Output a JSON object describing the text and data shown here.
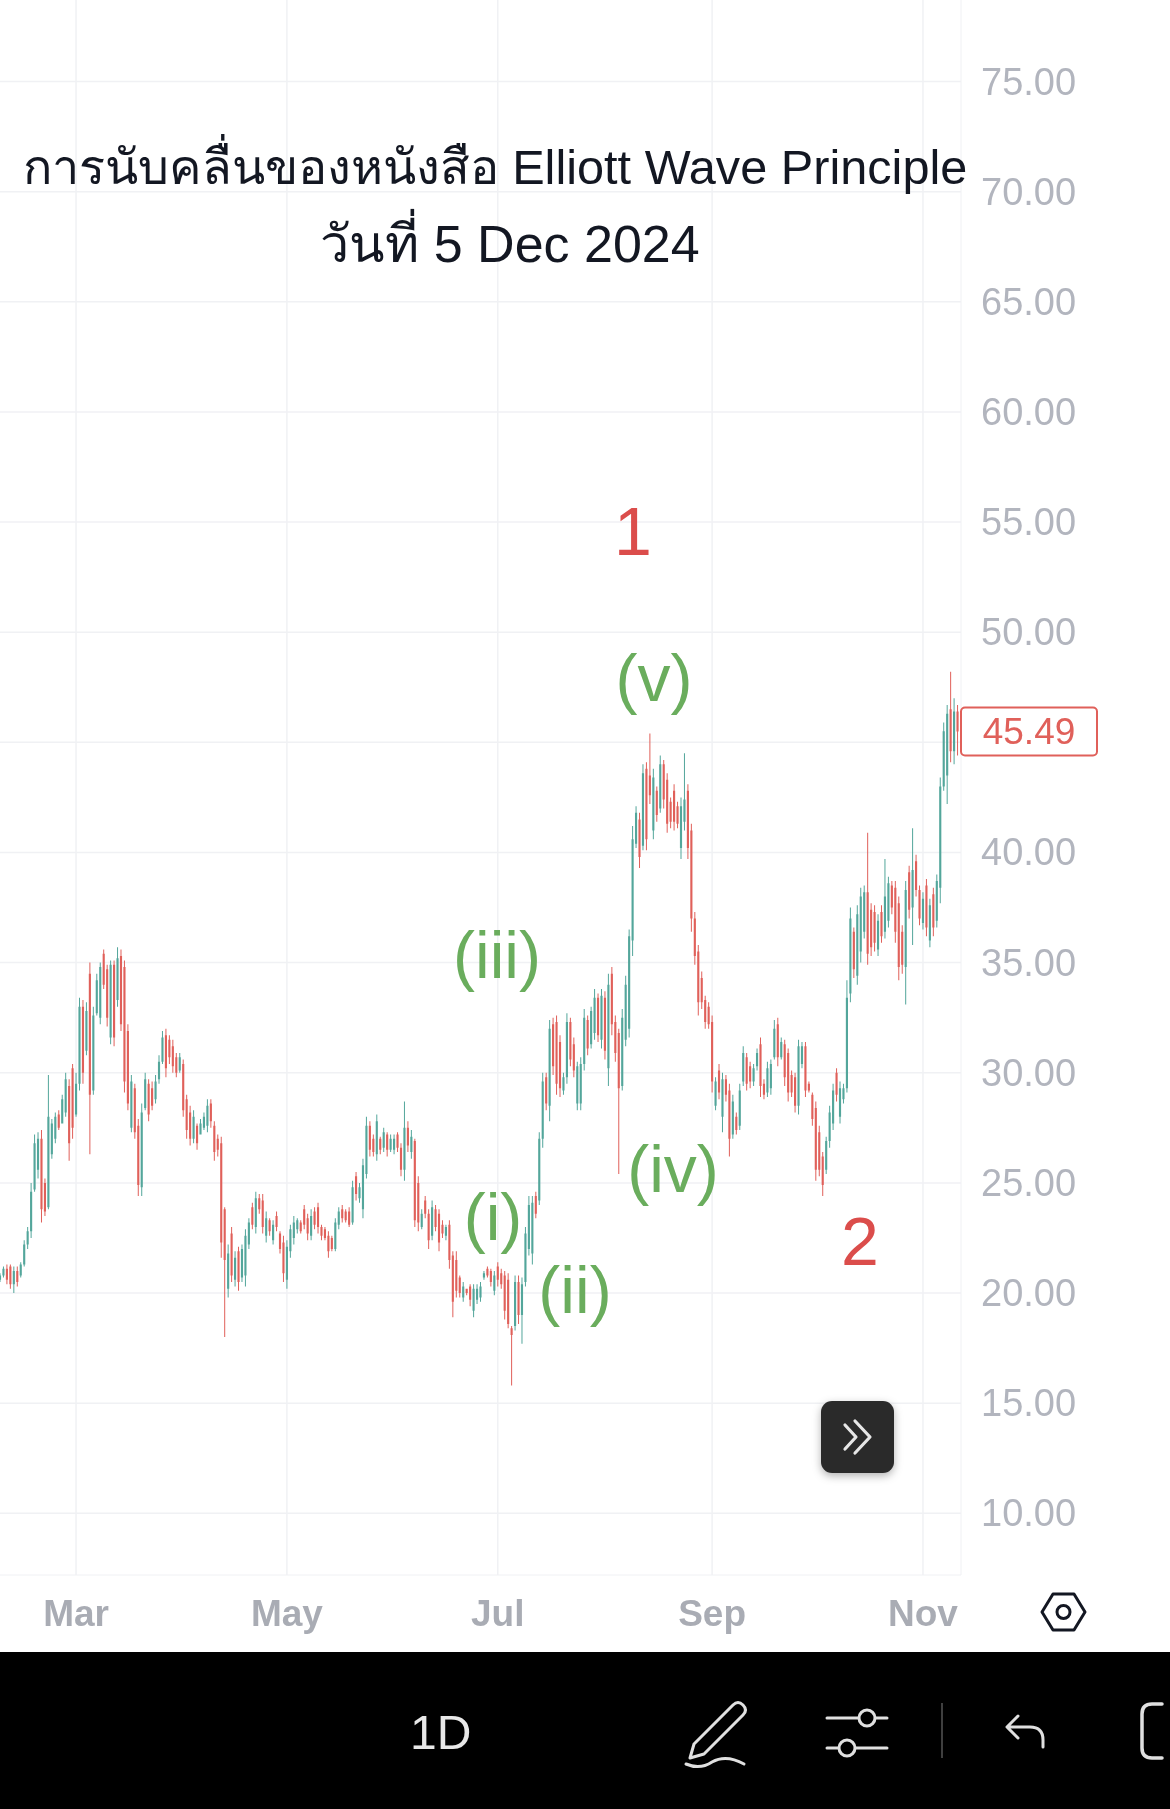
{
  "chart_data": {
    "type": "candlestick",
    "title": "การนับคลื่นของหนังสือ Elliott Wave Principle",
    "subtitle": "วันที่ 5 Dec 2024",
    "x": [
      "--02-08",
      "--02-09",
      "--02-10",
      "--02-11",
      "--02-12",
      "--02-13",
      "--02-14",
      "--02-15",
      "--02-16",
      "--02-17",
      "--02-18",
      "--02-19",
      "--02-20",
      "--02-21",
      "--02-22",
      "--02-23",
      "--02-24",
      "--02-25",
      "--02-26",
      "--02-27",
      "--02-28",
      "--02-29",
      "--03-01",
      "--03-02",
      "--03-03",
      "--03-04",
      "--03-05",
      "--03-06",
      "--03-07",
      "--03-08",
      "--03-09",
      "--03-10",
      "--03-11",
      "--03-12",
      "--03-13",
      "--03-14",
      "--03-15",
      "--03-16",
      "--03-17",
      "--03-18",
      "--03-19",
      "--03-20",
      "--03-21",
      "--03-22",
      "--03-23",
      "--03-24",
      "--03-25",
      "--03-26",
      "--03-27",
      "--03-28",
      "--03-29",
      "--03-30",
      "--03-31",
      "--04-01",
      "--04-02",
      "--04-03",
      "--04-04",
      "--04-05",
      "--04-06",
      "--04-07",
      "--04-08",
      "--04-09",
      "--04-10",
      "--04-11",
      "--04-12",
      "--04-13",
      "--04-14",
      "--04-15",
      "--04-16",
      "--04-17",
      "--04-18",
      "--04-19",
      "--04-20",
      "--04-21",
      "--04-22",
      "--04-23",
      "--04-24",
      "--04-25",
      "--04-26",
      "--04-27",
      "--04-28",
      "--04-29",
      "--04-30",
      "--05-01",
      "--05-02",
      "--05-03",
      "--05-04",
      "--05-05",
      "--05-06",
      "--05-07",
      "--05-08",
      "--05-09",
      "--05-10",
      "--05-11",
      "--05-12",
      "--05-13",
      "--05-14",
      "--05-15",
      "--05-16",
      "--05-17",
      "--05-18",
      "--05-19",
      "--05-20",
      "--05-21",
      "--05-22",
      "--05-23",
      "--05-24",
      "--05-25",
      "--05-26",
      "--05-27",
      "--05-28",
      "--05-29",
      "--05-30",
      "--05-31",
      "--06-01",
      "--06-02",
      "--06-03",
      "--06-04",
      "--06-05",
      "--06-06",
      "--06-07",
      "--06-08",
      "--06-09",
      "--06-10",
      "--06-11",
      "--06-12",
      "--06-13",
      "--06-14",
      "--06-15",
      "--06-16",
      "--06-17",
      "--06-18",
      "--06-19",
      "--06-20",
      "--06-21",
      "--06-22",
      "--06-23",
      "--06-24",
      "--06-25",
      "--06-26",
      "--06-27",
      "--06-28",
      "--06-29",
      "--06-30",
      "--07-01",
      "--07-02",
      "--07-03",
      "--07-04",
      "--07-05",
      "--07-06",
      "--07-07",
      "--07-08",
      "--07-09",
      "--07-10",
      "--07-11",
      "--07-12",
      "--07-13",
      "--07-14",
      "--07-15",
      "--07-16",
      "--07-17",
      "--07-18",
      "--07-19",
      "--07-20",
      "--07-21",
      "--07-22",
      "--07-23",
      "--07-24",
      "--07-25",
      "--07-26",
      "--07-27",
      "--07-28",
      "--07-29",
      "--07-30",
      "--07-31",
      "--08-01",
      "--08-02",
      "--08-03",
      "--08-04",
      "--08-05",
      "--08-06",
      "--08-07",
      "--08-08",
      "--08-09",
      "--08-10",
      "--08-11",
      "--08-12",
      "--08-13",
      "--08-14",
      "--08-15",
      "--08-16",
      "--08-17",
      "--08-18",
      "--08-19",
      "--08-20",
      "--08-21",
      "--08-22",
      "--08-23",
      "--08-24",
      "--08-25",
      "--08-26",
      "--08-27",
      "--08-28",
      "--08-29",
      "--08-30",
      "--08-31",
      "--09-01",
      "--09-02",
      "--09-03",
      "--09-04",
      "--09-05",
      "--09-06",
      "--09-07",
      "--09-08",
      "--09-09",
      "--09-10",
      "--09-11",
      "--09-12",
      "--09-13",
      "--09-14",
      "--09-15",
      "--09-16",
      "--09-17",
      "--09-18",
      "--09-19",
      "--09-20",
      "--09-21",
      "--09-22",
      "--09-23",
      "--09-24",
      "--09-25",
      "--09-26",
      "--09-27",
      "--09-28",
      "--09-29",
      "--09-30",
      "--10-01",
      "--10-02",
      "--10-03",
      "--10-04",
      "--10-05",
      "--10-06",
      "--10-07",
      "--10-08",
      "--10-09",
      "--10-10",
      "--10-11",
      "--10-12",
      "--10-13",
      "--10-14",
      "--10-15",
      "--10-16",
      "--10-17",
      "--10-18",
      "--10-19",
      "--10-20",
      "--10-21",
      "--10-22",
      "--10-23",
      "--10-24",
      "--10-25",
      "--10-26",
      "--10-27",
      "--10-28",
      "--10-29",
      "--10-30",
      "--10-31",
      "--11-01",
      "--11-02",
      "--11-03",
      "--11-04",
      "--11-05",
      "--11-06",
      "--11-07",
      "--11-08",
      "--11-09",
      "--11-10",
      "--11-11"
    ],
    "ohlc": [
      [
        20.6,
        20.9,
        20.5,
        20.8
      ],
      [
        20.8,
        21.2,
        20.7,
        21.1
      ],
      [
        21.1,
        21.3,
        20.4,
        20.6
      ],
      [
        21.2,
        21.3,
        20.2,
        20.4
      ],
      [
        20.4,
        21.2,
        20.0,
        21.0
      ],
      [
        21.0,
        21.2,
        20.3,
        20.5
      ],
      [
        20.8,
        21.4,
        20.7,
        21.3
      ],
      [
        21.3,
        22.4,
        21.2,
        22.2
      ],
      [
        22.2,
        23.0,
        22.0,
        22.8
      ],
      [
        22.8,
        25.0,
        22.5,
        24.6
      ],
      [
        24.7,
        27.2,
        24.6,
        26.8
      ],
      [
        25.6,
        27.3,
        25.2,
        27.0
      ],
      [
        27.0,
        27.4,
        23.2,
        23.8
      ],
      [
        25.0,
        25.2,
        23.5,
        23.7
      ],
      [
        23.9,
        29.9,
        23.8,
        28.0
      ],
      [
        26.3,
        27.9,
        26.1,
        27.7
      ],
      [
        27.0,
        28.2,
        26.8,
        28.0
      ],
      [
        28.1,
        28.3,
        27.4,
        27.5
      ],
      [
        27.7,
        29.0,
        27.7,
        28.8
      ],
      [
        28.2,
        30.0,
        28.0,
        29.7
      ],
      [
        29.4,
        29.7,
        26.0,
        26.8
      ],
      [
        30.2,
        30.4,
        27.0,
        27.5
      ],
      [
        28.1,
        30.0,
        28.0,
        29.5
      ],
      [
        29.5,
        33.4,
        29.2,
        33.0
      ],
      [
        33.0,
        33.3,
        29.5,
        30.0
      ],
      [
        31.0,
        33.2,
        30.8,
        32.8
      ],
      [
        34.5,
        35.0,
        26.3,
        29.0
      ],
      [
        29.2,
        33.0,
        29.0,
        32.6
      ],
      [
        32.7,
        34.5,
        32.6,
        34.2
      ],
      [
        32.5,
        35.0,
        32.2,
        34.8
      ],
      [
        35.4,
        35.6,
        33.8,
        34.0
      ],
      [
        34.7,
        34.9,
        32.1,
        32.5
      ],
      [
        31.6,
        35.1,
        31.3,
        34.9
      ],
      [
        34.9,
        35.1,
        31.2,
        31.6
      ],
      [
        33.3,
        35.7,
        33.0,
        35.2
      ],
      [
        35.3,
        35.6,
        31.9,
        32.2
      ],
      [
        34.8,
        35.1,
        29.1,
        29.6
      ],
      [
        31.9,
        32.2,
        28.3,
        28.6
      ],
      [
        27.5,
        29.9,
        27.3,
        29.6
      ],
      [
        29.3,
        29.5,
        27.0,
        27.3
      ],
      [
        27.6,
        27.9,
        24.4,
        24.9
      ],
      [
        24.8,
        28.6,
        24.4,
        28.2
      ],
      [
        28.4,
        30.0,
        28.3,
        29.7
      ],
      [
        29.5,
        29.7,
        27.8,
        28.1
      ],
      [
        29.3,
        29.6,
        28.3,
        28.5
      ],
      [
        28.8,
        29.9,
        28.6,
        29.6
      ],
      [
        29.7,
        30.8,
        29.5,
        30.5
      ],
      [
        30.5,
        31.9,
        30.4,
        31.6
      ],
      [
        31.7,
        32.0,
        29.8,
        30.2
      ],
      [
        31.5,
        31.7,
        30.4,
        30.7
      ],
      [
        31.2,
        31.5,
        30.0,
        30.3
      ],
      [
        30.7,
        30.9,
        29.8,
        30.0
      ],
      [
        30.1,
        30.9,
        30.0,
        30.7
      ],
      [
        30.4,
        30.6,
        28.0,
        28.3
      ],
      [
        28.8,
        29.0,
        27.0,
        27.4
      ],
      [
        28.2,
        28.5,
        26.7,
        27.0
      ],
      [
        27.0,
        28.3,
        26.8,
        28.0
      ],
      [
        27.6,
        27.7,
        26.5,
        26.8
      ],
      [
        27.2,
        27.9,
        27.2,
        27.7
      ],
      [
        27.5,
        28.2,
        27.4,
        28.0
      ],
      [
        27.6,
        28.8,
        27.3,
        28.5
      ],
      [
        28.6,
        28.8,
        27.5,
        27.8
      ],
      [
        27.6,
        27.8,
        26.0,
        26.4
      ],
      [
        27.0,
        27.2,
        26.2,
        26.5
      ],
      [
        26.8,
        27.1,
        21.6,
        22.3
      ],
      [
        23.8,
        23.9,
        18.0,
        21.5
      ],
      [
        20.2,
        22.2,
        19.8,
        21.8
      ],
      [
        22.7,
        23.0,
        20.5,
        20.8
      ],
      [
        20.6,
        21.9,
        20.3,
        21.6
      ],
      [
        21.9,
        22.1,
        20.1,
        20.5
      ],
      [
        20.7,
        22.2,
        20.5,
        22.0
      ],
      [
        20.8,
        22.9,
        20.3,
        22.6
      ],
      [
        22.2,
        23.4,
        22.0,
        23.2
      ],
      [
        23.9,
        24.1,
        22.9,
        23.1
      ],
      [
        23.0,
        24.6,
        22.7,
        24.3
      ],
      [
        24.3,
        24.5,
        23.6,
        23.8
      ],
      [
        24.2,
        24.5,
        22.7,
        23.0
      ],
      [
        22.6,
        23.7,
        22.3,
        23.4
      ],
      [
        23.3,
        23.4,
        22.6,
        22.8
      ],
      [
        22.4,
        23.3,
        22.2,
        23.1
      ],
      [
        23.5,
        23.7,
        22.8,
        23.0
      ],
      [
        22.7,
        22.8,
        21.8,
        22.0
      ],
      [
        22.3,
        22.6,
        20.5,
        20.9
      ],
      [
        20.6,
        22.4,
        20.2,
        22.1
      ],
      [
        21.9,
        23.1,
        21.6,
        22.9
      ],
      [
        22.5,
        23.5,
        22.2,
        23.2
      ],
      [
        22.9,
        23.4,
        22.7,
        23.3
      ],
      [
        23.2,
        23.3,
        22.7,
        22.8
      ],
      [
        23.8,
        24.0,
        22.9,
        23.1
      ],
      [
        23.4,
        23.6,
        22.4,
        22.7
      ],
      [
        22.6,
        23.8,
        22.4,
        23.5
      ],
      [
        23.7,
        23.9,
        22.9,
        23.1
      ],
      [
        23.9,
        24.1,
        22.7,
        23.0
      ],
      [
        23.0,
        23.1,
        22.4,
        22.6
      ],
      [
        22.9,
        23.0,
        22.4,
        22.5
      ],
      [
        22.6,
        22.8,
        21.6,
        21.9
      ],
      [
        22.5,
        22.6,
        21.9,
        22.0
      ],
      [
        22.0,
        23.4,
        21.9,
        23.2
      ],
      [
        23.1,
        23.9,
        22.9,
        23.7
      ],
      [
        23.8,
        24.0,
        23.2,
        23.4
      ],
      [
        23.7,
        23.8,
        23.2,
        23.3
      ],
      [
        23.7,
        23.9,
        23.0,
        23.1
      ],
      [
        23.2,
        25.1,
        23.1,
        24.8
      ],
      [
        25.3,
        25.5,
        24.2,
        24.5
      ],
      [
        24.3,
        25.0,
        24.1,
        24.8
      ],
      [
        23.8,
        26.1,
        23.4,
        25.8
      ],
      [
        25.4,
        28.0,
        25.2,
        27.6
      ],
      [
        27.6,
        27.8,
        26.2,
        26.5
      ],
      [
        27.0,
        27.2,
        26.2,
        26.4
      ],
      [
        26.3,
        28.1,
        26.0,
        27.8
      ],
      [
        27.0,
        27.1,
        26.3,
        26.5
      ],
      [
        26.6,
        27.5,
        26.4,
        27.3
      ],
      [
        27.2,
        27.3,
        26.2,
        26.5
      ],
      [
        26.5,
        27.2,
        26.4,
        27.0
      ],
      [
        26.5,
        27.2,
        26.3,
        27.0
      ],
      [
        27.2,
        27.3,
        26.4,
        26.6
      ],
      [
        26.6,
        26.8,
        25.3,
        25.6
      ],
      [
        25.6,
        28.7,
        25.1,
        27.5
      ],
      [
        27.5,
        27.8,
        26.4,
        26.7
      ],
      [
        26.4,
        27.4,
        26.1,
        27.1
      ],
      [
        26.9,
        27.0,
        23.0,
        23.3
      ],
      [
        25.0,
        25.3,
        22.8,
        23.2
      ],
      [
        23.0,
        23.8,
        22.9,
        23.6
      ],
      [
        24.2,
        24.4,
        23.4,
        23.6
      ],
      [
        23.6,
        23.8,
        22.0,
        22.4
      ],
      [
        22.6,
        24.2,
        22.4,
        23.9
      ],
      [
        23.8,
        24.0,
        22.8,
        23.0
      ],
      [
        23.6,
        23.8,
        21.9,
        22.3
      ],
      [
        23.1,
        23.3,
        22.5,
        22.7
      ],
      [
        22.6,
        23.1,
        22.4,
        23.0
      ],
      [
        23.1,
        23.3,
        21.1,
        21.5
      ],
      [
        21.7,
        21.9,
        18.9,
        19.6
      ],
      [
        21.5,
        21.9,
        19.8,
        20.1
      ],
      [
        20.7,
        20.8,
        19.8,
        20.0
      ],
      [
        19.8,
        20.5,
        19.6,
        20.3
      ],
      [
        20.2,
        20.2,
        19.9,
        20.0
      ],
      [
        20.3,
        20.4,
        19.4,
        19.7
      ],
      [
        19.2,
        20.4,
        18.9,
        20.2
      ],
      [
        19.7,
        20.4,
        19.5,
        20.2
      ],
      [
        19.8,
        20.5,
        19.6,
        20.3
      ],
      [
        20.7,
        21.0,
        20.6,
        20.9
      ],
      [
        21.1,
        21.2,
        20.7,
        20.8
      ],
      [
        21.0,
        21.1,
        20.3,
        20.5
      ],
      [
        20.1,
        21.0,
        19.9,
        20.8
      ],
      [
        21.2,
        21.4,
        20.3,
        20.6
      ],
      [
        20.9,
        21.1,
        20.2,
        20.4
      ],
      [
        20.8,
        21.0,
        18.8,
        19.2
      ],
      [
        20.6,
        20.9,
        18.4,
        18.6
      ],
      [
        18.4,
        18.5,
        15.8,
        18.1
      ],
      [
        18.5,
        20.8,
        18.3,
        20.5
      ],
      [
        20.5,
        20.8,
        18.6,
        19.0
      ],
      [
        19.0,
        20.7,
        17.7,
        20.4
      ],
      [
        20.5,
        23.0,
        20.3,
        22.7
      ],
      [
        22.0,
        24.4,
        21.7,
        24.0
      ],
      [
        21.8,
        24.4,
        21.3,
        24.1
      ],
      [
        24.4,
        24.6,
        23.4,
        23.6
      ],
      [
        24.2,
        27.3,
        24.0,
        27.0
      ],
      [
        27.0,
        30.0,
        26.6,
        29.6
      ],
      [
        29.8,
        30.0,
        28.3,
        28.6
      ],
      [
        28.5,
        32.4,
        27.8,
        32.0
      ],
      [
        32.2,
        32.5,
        29.9,
        30.3
      ],
      [
        32.3,
        32.6,
        29.0,
        29.5
      ],
      [
        31.4,
        31.7,
        28.9,
        29.3
      ],
      [
        29.2,
        30.0,
        29.0,
        29.8
      ],
      [
        29.8,
        32.7,
        29.5,
        32.3
      ],
      [
        32.3,
        32.5,
        30.3,
        30.6
      ],
      [
        31.3,
        31.6,
        29.8,
        30.1
      ],
      [
        28.6,
        30.5,
        28.3,
        30.3
      ],
      [
        28.6,
        30.7,
        28.3,
        30.4
      ],
      [
        30.4,
        32.9,
        30.1,
        32.5
      ],
      [
        32.4,
        32.6,
        30.8,
        31.1
      ],
      [
        31.3,
        33.0,
        31.1,
        32.8
      ],
      [
        31.8,
        33.8,
        31.5,
        33.4
      ],
      [
        33.4,
        33.6,
        31.4,
        31.7
      ],
      [
        31.5,
        33.8,
        31.1,
        33.5
      ],
      [
        33.4,
        33.7,
        30.6,
        31.0
      ],
      [
        30.2,
        34.5,
        29.4,
        34.0
      ],
      [
        34.5,
        34.8,
        31.7,
        32.2
      ],
      [
        32.3,
        32.6,
        30.5,
        30.9
      ],
      [
        31.8,
        32.0,
        25.4,
        29.3
      ],
      [
        29.4,
        32.9,
        29.2,
        32.5
      ],
      [
        31.5,
        34.4,
        31.2,
        34.0
      ],
      [
        32.0,
        36.5,
        31.6,
        36.2
      ],
      [
        36.0,
        41.2,
        35.3,
        40.6
      ],
      [
        40.4,
        42.1,
        40.2,
        41.8
      ],
      [
        41.5,
        41.8,
        39.3,
        39.8
      ],
      [
        40.3,
        44.0,
        40.1,
        43.6
      ],
      [
        43.8,
        44.1,
        40.1,
        40.6
      ],
      [
        43.5,
        45.4,
        42.2,
        42.6
      ],
      [
        41.0,
        43.8,
        40.6,
        43.4
      ],
      [
        42.8,
        43.0,
        41.4,
        41.7
      ],
      [
        42.0,
        44.4,
        41.8,
        44.0
      ],
      [
        44.0,
        44.2,
        42.0,
        42.4
      ],
      [
        43.3,
        43.6,
        40.9,
        41.3
      ],
      [
        42.3,
        42.5,
        41.1,
        41.4
      ],
      [
        42.8,
        43.1,
        41.0,
        41.4
      ],
      [
        42.1,
        42.3,
        41.1,
        41.3
      ],
      [
        40.2,
        42.5,
        39.7,
        42.1
      ],
      [
        41.4,
        44.5,
        41.0,
        42.4
      ],
      [
        42.8,
        43.1,
        39.7,
        40.2
      ],
      [
        41.0,
        41.3,
        36.4,
        37.0
      ],
      [
        37.0,
        37.3,
        34.9,
        35.3
      ],
      [
        35.5,
        35.8,
        32.6,
        33.2
      ],
      [
        34.3,
        34.6,
        32.9,
        33.2
      ],
      [
        33.3,
        33.5,
        32.0,
        32.3
      ],
      [
        33.0,
        33.2,
        32.0,
        32.2
      ],
      [
        32.3,
        32.6,
        29.1,
        29.6
      ],
      [
        28.5,
        29.8,
        28.3,
        29.6
      ],
      [
        30.1,
        30.4,
        28.8,
        29.1
      ],
      [
        28.0,
        30.0,
        27.3,
        29.7
      ],
      [
        29.7,
        29.9,
        28.7,
        29.0
      ],
      [
        29.2,
        29.5,
        26.2,
        27.0
      ],
      [
        27.2,
        29.0,
        27.0,
        28.7
      ],
      [
        28.0,
        28.2,
        27.2,
        27.4
      ],
      [
        27.6,
        29.5,
        27.4,
        29.2
      ],
      [
        29.6,
        31.2,
        29.4,
        30.9
      ],
      [
        30.7,
        30.9,
        29.2,
        29.5
      ],
      [
        30.3,
        30.5,
        29.3,
        29.6
      ],
      [
        29.6,
        30.4,
        29.4,
        30.2
      ],
      [
        30.3,
        31.1,
        30.1,
        30.9
      ],
      [
        31.3,
        31.6,
        28.9,
        29.4
      ],
      [
        29.5,
        29.7,
        28.8,
        29.0
      ],
      [
        29.1,
        30.5,
        28.9,
        30.2
      ],
      [
        29.3,
        30.6,
        29.0,
        30.4
      ],
      [
        30.7,
        32.4,
        30.6,
        32.0
      ],
      [
        32.2,
        32.5,
        30.3,
        30.7
      ],
      [
        30.7,
        31.6,
        30.6,
        31.4
      ],
      [
        31.3,
        31.5,
        29.4,
        29.8
      ],
      [
        30.9,
        31.1,
        28.7,
        29.1
      ],
      [
        29.9,
        30.1,
        28.9,
        29.1
      ],
      [
        29.8,
        30.0,
        28.2,
        28.5
      ],
      [
        28.5,
        31.5,
        28.1,
        31.2
      ],
      [
        30.4,
        31.4,
        30.2,
        31.2
      ],
      [
        31.2,
        31.4,
        28.9,
        29.2
      ],
      [
        29.5,
        29.6,
        29.1,
        29.2
      ],
      [
        29.0,
        29.1,
        27.6,
        27.9
      ],
      [
        28.4,
        28.7,
        25.1,
        25.6
      ],
      [
        27.3,
        27.6,
        25.3,
        25.6
      ],
      [
        26.2,
        26.4,
        24.4,
        24.9
      ],
      [
        25.6,
        27.1,
        25.4,
        26.9
      ],
      [
        26.9,
        28.5,
        26.6,
        28.2
      ],
      [
        27.7,
        29.5,
        27.4,
        29.2
      ],
      [
        30.0,
        30.2,
        28.7,
        29.0
      ],
      [
        28.0,
        29.6,
        27.7,
        29.3
      ],
      [
        28.8,
        29.5,
        28.6,
        29.3
      ],
      [
        29.3,
        34.2,
        29.1,
        33.4
      ],
      [
        33.6,
        37.5,
        33.2,
        37.0
      ],
      [
        36.4,
        36.6,
        34.3,
        34.7
      ],
      [
        34.4,
        37.6,
        34.0,
        37.2
      ],
      [
        35.5,
        38.4,
        35.0,
        38.0
      ],
      [
        36.4,
        38.5,
        36.1,
        38.2
      ],
      [
        38.2,
        40.9,
        34.9,
        35.4
      ],
      [
        37.4,
        37.7,
        35.3,
        35.7
      ],
      [
        37.3,
        37.6,
        35.5,
        35.9
      ],
      [
        35.6,
        37.2,
        35.3,
        36.9
      ],
      [
        37.3,
        37.6,
        35.9,
        36.2
      ],
      [
        36.4,
        39.7,
        36.1,
        38.0
      ],
      [
        36.9,
        38.9,
        36.6,
        38.6
      ],
      [
        38.5,
        38.7,
        37.2,
        37.5
      ],
      [
        38.4,
        38.7,
        35.9,
        36.4
      ],
      [
        37.7,
        38.0,
        34.2,
        34.8
      ],
      [
        36.4,
        36.7,
        34.5,
        34.9
      ],
      [
        34.8,
        38.7,
        33.1,
        38.3
      ],
      [
        39.1,
        39.4,
        37.0,
        37.4
      ],
      [
        37.5,
        41.1,
        35.8,
        39.2
      ],
      [
        39.6,
        39.9,
        38.0,
        38.3
      ],
      [
        38.3,
        38.5,
        36.7,
        37.0
      ],
      [
        36.8,
        38.2,
        36.5,
        37.9
      ],
      [
        38.5,
        38.8,
        36.2,
        36.6
      ],
      [
        36.0,
        37.9,
        35.7,
        37.6
      ],
      [
        38.1,
        38.4,
        36.2,
        36.6
      ],
      [
        36.9,
        39.0,
        36.6,
        38.7
      ],
      [
        38.4,
        43.4,
        37.7,
        43.0
      ],
      [
        43.0,
        45.9,
        42.8,
        45.5
      ],
      [
        43.5,
        46.7,
        42.2,
        46.3
      ],
      [
        46.5,
        48.2,
        44.1,
        44.6
      ],
      [
        44.6,
        47.0,
        44.0,
        46.4
      ],
      [
        46.4,
        46.7,
        44.4,
        45.49
      ]
    ],
    "xlim": [
      "--02-08",
      "--11-12"
    ],
    "xticks": [
      {
        "value": "--03-01",
        "label": "Mar"
      },
      {
        "value": "--05-01",
        "label": "May"
      },
      {
        "value": "--07-01",
        "label": "Jul"
      },
      {
        "value": "--09-01",
        "label": "Sep"
      },
      {
        "value": "--11-01",
        "label": "Nov"
      }
    ],
    "ylim": [
      7.2,
      78.7
    ],
    "yticks": [
      {
        "value": 10,
        "label": "10.00"
      },
      {
        "value": 15,
        "label": "15.00"
      },
      {
        "value": 20,
        "label": "20.00"
      },
      {
        "value": 25,
        "label": "25.00"
      },
      {
        "value": 30,
        "label": "30.00"
      },
      {
        "value": 35,
        "label": "35.00"
      },
      {
        "value": 40,
        "label": "40.00"
      },
      {
        "value": 45,
        "label": null
      },
      {
        "value": 50,
        "label": "50.00"
      },
      {
        "value": 55,
        "label": "55.00"
      },
      {
        "value": 60,
        "label": "60.00"
      },
      {
        "value": 65,
        "label": "65.00"
      },
      {
        "value": 70,
        "label": "70.00"
      },
      {
        "value": 75,
        "label": "75.00"
      }
    ],
    "grid": true,
    "annotations": [
      "1",
      "2",
      "(i)",
      "(ii)",
      "(iii)",
      "(iv)",
      "(v)",
      {
        "text": "45.49",
        "x": "--11-11",
        "y": 45.49
      },
      "1D"
    ]
  }
}
